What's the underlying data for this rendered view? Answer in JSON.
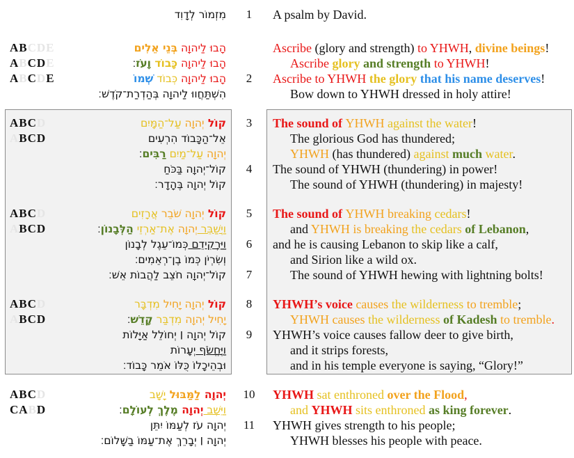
{
  "colors": {
    "red": "#e81717",
    "orange": "#f2a21d",
    "gold": "#e5c020",
    "green": "#567d26",
    "blue": "#2e8fe8",
    "dim": "#e5e5e5",
    "black": "#111111",
    "box_bg": "#f2f2f2",
    "box_border": "#8c8c8c"
  },
  "rows": [
    {
      "s": "top",
      "v": "1",
      "he": [
        {
          "t": "מִזְמוֹר לְדָוִד"
        }
      ],
      "en": [
        {
          "t": "A psalm by David."
        }
      ]
    },
    {
      "sp": 26
    },
    {
      "s": "top",
      "lt": [
        {
          "t": "AB"
        },
        {
          "t": "CDE",
          "c": "dim"
        }
      ],
      "he": [
        {
          "t": "הָבוּ לַיהוָה ",
          "c": "red"
        },
        {
          "t": "בְּנֵי אֵלִים",
          "c": "orange",
          "b": 1
        }
      ],
      "en": [
        {
          "t": "Ascribe ",
          "c": "red"
        },
        {
          "t": "(glory and strength) "
        },
        {
          "t": "to YHWH",
          "c": "red"
        },
        {
          "t": ", "
        },
        {
          "t": "divine beings",
          "c": "orange",
          "b": 1
        },
        {
          "t": "!"
        }
      ]
    },
    {
      "s": "top",
      "lt": [
        {
          "t": "A"
        },
        {
          "t": "B",
          "c": "dim"
        },
        {
          "t": "CD"
        },
        {
          "t": "E",
          "c": "dim"
        }
      ],
      "he": [
        {
          "t": "הָבוּ לַיהוָה ",
          "c": "red"
        },
        {
          "t": "כָּבוֹד ",
          "c": "gold",
          "b": 1
        },
        {
          "t": "וָעֹז",
          "c": "green",
          "b": 1
        },
        {
          "t": "׃"
        }
      ],
      "ind": 1,
      "en": [
        {
          "t": "Ascribe ",
          "c": "red"
        },
        {
          "t": "glory ",
          "c": "gold",
          "b": 1
        },
        {
          "t": "and strength ",
          "c": "green",
          "b": 1
        },
        {
          "t": "to YHWH",
          "c": "red"
        },
        {
          "t": "!"
        }
      ]
    },
    {
      "s": "top",
      "v": "2",
      "lt": [
        {
          "t": "A"
        },
        {
          "t": "B",
          "c": "dim"
        },
        {
          "t": "C"
        },
        {
          "t": "D",
          "c": "dim"
        },
        {
          "t": "E"
        }
      ],
      "he": [
        {
          "t": "הָבוּ לַיהוָה ",
          "c": "red"
        },
        {
          "t": "כְּבוֹד ",
          "c": "gold"
        },
        {
          "t": "שְׁמוֹ",
          "c": "blue",
          "b": 1
        }
      ],
      "en": [
        {
          "t": "Ascribe to YHWH ",
          "c": "red"
        },
        {
          "t": "the glory ",
          "c": "gold",
          "b": 1
        },
        {
          "t": "that his name deserves",
          "c": "blue",
          "b": 1
        },
        {
          "t": "!"
        }
      ]
    },
    {
      "s": "top",
      "he": [
        {
          "t": "הִשְׁתַּחֲווּ לַיהוָה בְּהַדְרַת־קֹדֶשׁ׃"
        }
      ],
      "ind": 1,
      "en": [
        {
          "t": "Bow down to YHWH dressed in holy attire!"
        }
      ]
    },
    {
      "sp": 20
    },
    {
      "s": "box",
      "v": "3",
      "lt": [
        {
          "t": "ABC"
        },
        {
          "t": "D",
          "c": "dim"
        }
      ],
      "he": [
        {
          "t": "קוֹל ",
          "c": "red",
          "b": 1
        },
        {
          "t": "יְהוָה ",
          "c": "orange"
        },
        {
          "t": "עַל־הַמָּיִם",
          "c": "gold"
        }
      ],
      "en": [
        {
          "t": "The sound of ",
          "c": "red",
          "b": 1
        },
        {
          "t": "YHWH ",
          "c": "orange"
        },
        {
          "t": "against the water",
          "c": "gold"
        },
        {
          "t": "!"
        }
      ]
    },
    {
      "s": "box",
      "lt": [
        {
          "t": "A",
          "c": "dim"
        },
        {
          "t": "BCD"
        }
      ],
      "he": [
        {
          "t": "אֵל־הַכָּבוֹד הִרְעִים"
        }
      ],
      "ind": 1,
      "en": [
        {
          "t": "The glorious God has thundered;"
        }
      ]
    },
    {
      "s": "box",
      "he": [
        {
          "t": "יְהוָה ",
          "c": "orange"
        },
        {
          "t": "עַל־מַיִם ",
          "c": "gold"
        },
        {
          "t": "רַבִּים",
          "c": "green",
          "b": 1
        },
        {
          "t": "׃"
        }
      ],
      "ind": 1,
      "en": [
        {
          "t": "YHWH ",
          "c": "orange"
        },
        {
          "t": "(has thundered) "
        },
        {
          "t": "against ",
          "c": "gold"
        },
        {
          "t": "much ",
          "c": "green",
          "b": 1
        },
        {
          "t": "water",
          "c": "gold"
        },
        {
          "t": "."
        }
      ]
    },
    {
      "s": "box",
      "v": "4",
      "he": [
        {
          "t": "קוֹל־יְהוָה בַּכֹּחַ"
        }
      ],
      "en": [
        {
          "t": "The sound of YHWH (thundering) in power!"
        }
      ]
    },
    {
      "s": "box",
      "he": [
        {
          "t": "קוֹל יְהוָה בֶּהָדָר׃"
        }
      ],
      "ind": 1,
      "en": [
        {
          "t": "The sound of YHWH (thundering) in majesty!"
        }
      ]
    },
    {
      "sp": 20
    },
    {
      "s": "box",
      "v": "5",
      "lt": [
        {
          "t": "ABC"
        },
        {
          "t": "D",
          "c": "dim"
        }
      ],
      "he": [
        {
          "t": "קוֹל ",
          "c": "red",
          "b": 1
        },
        {
          "t": "יְהוָה ",
          "c": "orange"
        },
        {
          "t": "שֹׁבֵר ",
          "c": "orange"
        },
        {
          "t": "אֲרָזִים",
          "c": "gold"
        }
      ],
      "en": [
        {
          "t": "The sound of ",
          "c": "red",
          "b": 1
        },
        {
          "t": "YHWH ",
          "c": "orange"
        },
        {
          "t": "breaking ",
          "c": "orange"
        },
        {
          "t": "cedars",
          "c": "gold"
        },
        {
          "t": "!"
        }
      ]
    },
    {
      "s": "box",
      "lt": [
        {
          "t": "A",
          "c": "dim"
        },
        {
          "t": "BCD"
        }
      ],
      "he": [
        {
          "t": "וַיְשַׁבֵּר ",
          "c": "gold",
          "u": 1
        },
        {
          "t": "יְהוָה ",
          "c": "orange"
        },
        {
          "t": "אֶת־אַרְזֵי ",
          "c": "gold"
        },
        {
          "t": "הַלְּבָנוֹן",
          "c": "green",
          "b": 1
        },
        {
          "t": "׃"
        }
      ],
      "ind": 1,
      "en": [
        {
          "t": "and "
        },
        {
          "t": "YHWH is breaking ",
          "c": "orange"
        },
        {
          "t": "the cedars ",
          "c": "gold"
        },
        {
          "t": "of Lebanon",
          "c": "green",
          "b": 1
        },
        {
          "t": ","
        }
      ]
    },
    {
      "s": "box",
      "v": "6",
      "he": [
        {
          "t": "וַיַּרְקִידֵם ",
          "u": 1
        },
        {
          "t": "כְּמוֹ־עֵגֶל לְבָנוֹן"
        }
      ],
      "en": [
        {
          "t": "and he is causing Lebanon to skip like a calf,"
        }
      ]
    },
    {
      "s": "box",
      "he": [
        {
          "t": "וְשִׂרְיֹן כְּמוֹ בֶן־רְאֵמִים׃"
        }
      ],
      "ind": 1,
      "en": [
        {
          "t": "and Sirion like a wild ox."
        }
      ]
    },
    {
      "s": "box",
      "v": "7",
      "he": [
        {
          "t": "קוֹל־יְהוָה חֹצֵב לַהֲבוֹת אֵשׁ׃"
        }
      ],
      "ind": 1,
      "en": [
        {
          "t": "The sound of YHWH hewing with lightning bolts!"
        }
      ]
    },
    {
      "sp": 20
    },
    {
      "s": "box",
      "v": "8",
      "lt": [
        {
          "t": "ABC"
        },
        {
          "t": "D",
          "c": "dim"
        }
      ],
      "he": [
        {
          "t": "קוֹל ",
          "c": "red",
          "b": 1
        },
        {
          "t": "יְהוָה ",
          "c": "orange"
        },
        {
          "t": "יָחִיל ",
          "c": "orange"
        },
        {
          "t": "מִדְבָּר",
          "c": "gold"
        }
      ],
      "en": [
        {
          "t": "YHWH’s voice ",
          "c": "red",
          "b": 1
        },
        {
          "t": "causes ",
          "c": "orange"
        },
        {
          "t": "the wilderness ",
          "c": "gold"
        },
        {
          "t": "to tremble",
          "c": "orange"
        },
        {
          "t": ";"
        }
      ]
    },
    {
      "s": "box",
      "lt": [
        {
          "t": "A",
          "c": "dim"
        },
        {
          "t": "BCD"
        }
      ],
      "he": [
        {
          "t": "יָחִיל ",
          "c": "orange"
        },
        {
          "t": "יְהוָה ",
          "c": "orange"
        },
        {
          "t": "מִדְבַּר ",
          "c": "gold"
        },
        {
          "t": "קָדֵשׁ",
          "c": "green",
          "b": 1
        },
        {
          "t": "׃"
        }
      ],
      "ind": 1,
      "en": [
        {
          "t": "YHWH causes ",
          "c": "orange"
        },
        {
          "t": "the wilderness ",
          "c": "gold"
        },
        {
          "t": "of Kadesh ",
          "c": "green",
          "b": 1
        },
        {
          "t": "to tremble",
          "c": "orange"
        },
        {
          "t": ".",
          "c": "red"
        }
      ]
    },
    {
      "s": "box",
      "v": "9",
      "he": [
        {
          "t": "קוֹל יְהוָה ׀ יְחוֹלֵל אַיָּלוֹת"
        }
      ],
      "en": [
        {
          "t": "YHWH’s voice causes fallow deer to give birth,"
        }
      ]
    },
    {
      "s": "box",
      "he": [
        {
          "t": "וַיֶּחֱשֹׂף ",
          "u": 1
        },
        {
          "t": "יְעָרוֹת"
        }
      ],
      "ind": 1,
      "en": [
        {
          "t": "and it strips forests,"
        }
      ]
    },
    {
      "s": "box",
      "he": [
        {
          "t": "וּבְהֵיכָלוֹ כֻּלּוֹ אֹמֵר כָּבוֹד׃"
        }
      ],
      "ind": 1,
      "en": [
        {
          "t": "and in his temple everyone is saying, “Glory!”"
        }
      ]
    },
    {
      "sp": 20
    },
    {
      "s": "bottom",
      "v": "10",
      "lt": [
        {
          "t": "ABC"
        },
        {
          "t": "D",
          "c": "dim"
        }
      ],
      "he": [
        {
          "t": "יְהוָה ",
          "c": "red",
          "b": 1
        },
        {
          "t": "לַמַּבּוּל ",
          "c": "orange",
          "b": 1
        },
        {
          "t": "יָשָׁב",
          "c": "gold"
        }
      ],
      "en": [
        {
          "t": "YHWH ",
          "c": "red",
          "b": 1
        },
        {
          "t": "sat enthroned ",
          "c": "gold"
        },
        {
          "t": "over the Flood",
          "c": "orange",
          "b": 1
        },
        {
          "t": ",",
          "c": "red"
        }
      ]
    },
    {
      "s": "bottom",
      "lt": [
        {
          "t": "CA"
        },
        {
          "t": "B",
          "c": "dim"
        },
        {
          "t": "D"
        }
      ],
      "he": [
        {
          "t": "וַיֵּשֶׁב ",
          "c": "gold",
          "u": 1
        },
        {
          "t": "יְהוָה ",
          "c": "red",
          "b": 1
        },
        {
          "t": "מֶלֶךְ לְעוֹלָם",
          "c": "green",
          "b": 1
        },
        {
          "t": "׃"
        }
      ],
      "ind": 1,
      "en": [
        {
          "t": "and ",
          "c": "gold"
        },
        {
          "t": "YHWH ",
          "c": "red",
          "b": 1
        },
        {
          "t": "sits enthroned ",
          "c": "gold"
        },
        {
          "t": "as king forever",
          "c": "green",
          "b": 1
        },
        {
          "t": "."
        }
      ]
    },
    {
      "s": "bottom",
      "v": "11",
      "he": [
        {
          "t": "יְהוָה עֹז לְעַמּוֹ יִתֵּן"
        }
      ],
      "en": [
        {
          "t": "YHWH gives strength to his people;"
        }
      ]
    },
    {
      "s": "bottom",
      "he": [
        {
          "t": "יְהוָה ׀ יְבָרֵךְ אֶת־עַמּוֹ בַשָּׁלוֹם׃"
        }
      ],
      "ind": 1,
      "en": [
        {
          "t": "YHWH blesses his people with peace."
        }
      ]
    }
  ]
}
